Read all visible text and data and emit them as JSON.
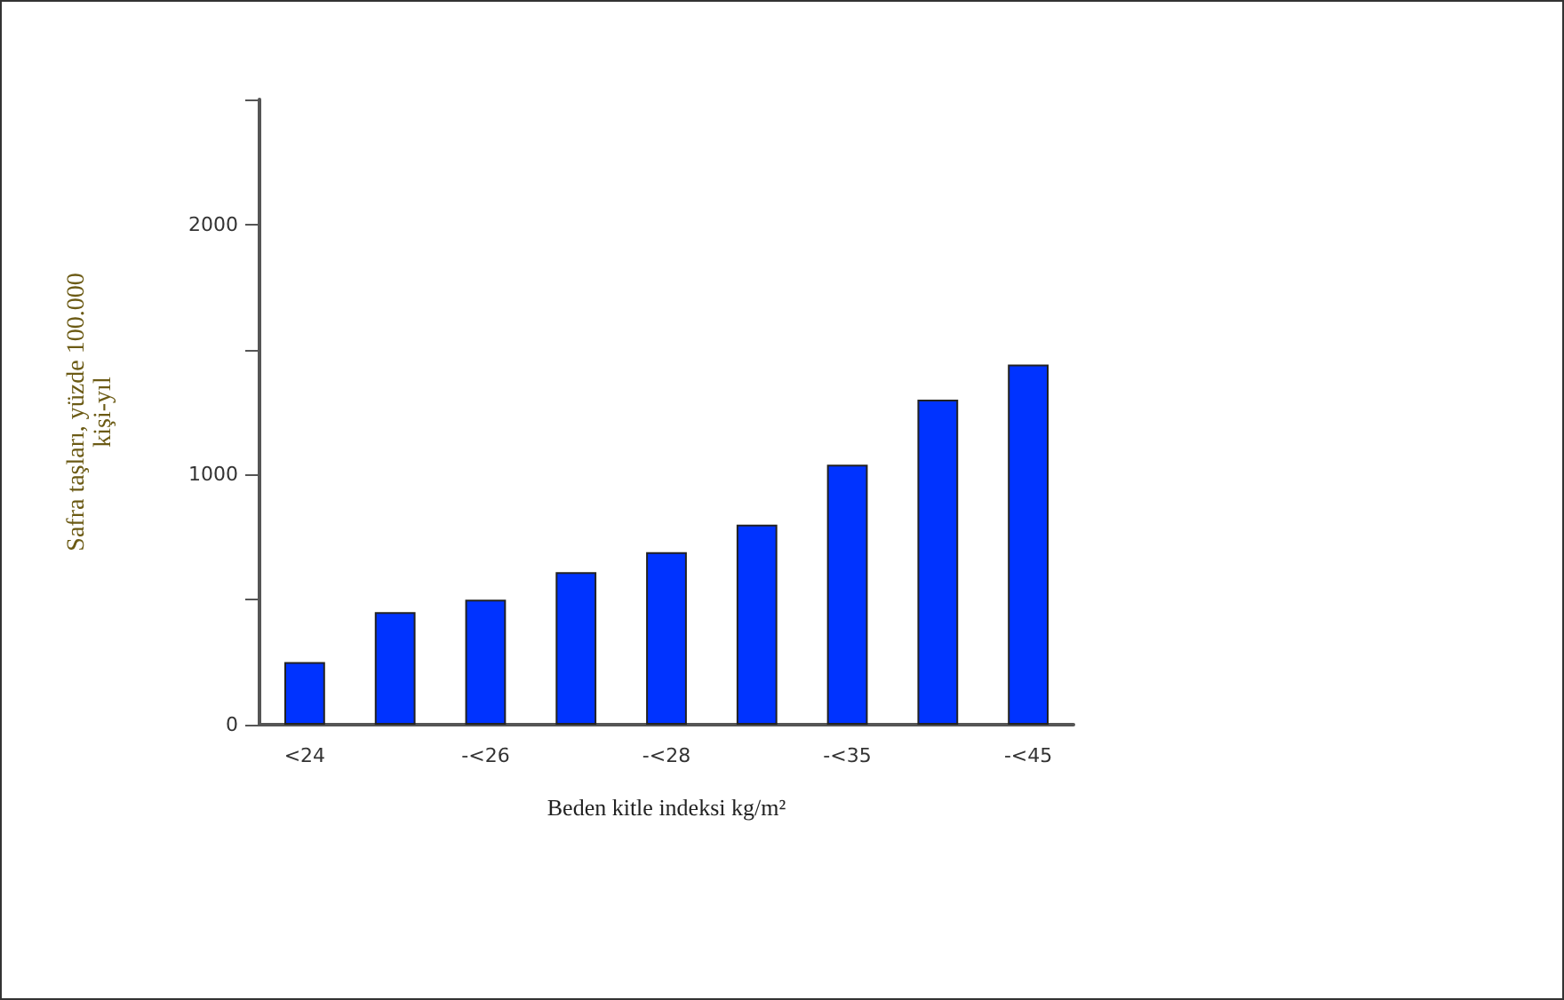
{
  "chart_data": {
    "type": "bar",
    "xlabel": "Beden kitle indeksi kg/m²",
    "ylabel": "Safra taşları, yüzde 100.000\nkişi-yıl",
    "categories": [
      "<24",
      null,
      "-<26",
      null,
      "-<28",
      null,
      "-<35",
      null,
      "-<45"
    ],
    "values": [
      250,
      450,
      500,
      610,
      690,
      800,
      1040,
      1300,
      1440
    ],
    "color": "#0033ff",
    "ylim": [
      0,
      2500
    ],
    "yticks": [
      0,
      {
        "value": 500,
        "label": null
      },
      1000,
      {
        "value": 1500,
        "label": null
      },
      2000,
      {
        "value": 2500,
        "label": null
      }
    ],
    "grid": false
  }
}
